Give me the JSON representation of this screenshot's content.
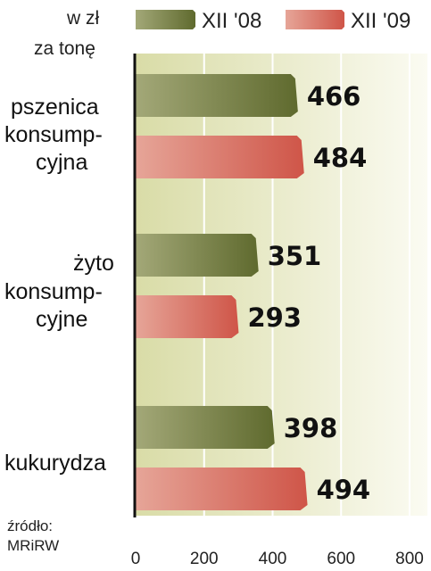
{
  "colors": {
    "series_2008": "#5f6a2e",
    "series_2008_light": "#a3a878",
    "series_2009": "#cf5548",
    "series_2009_light": "#e6a598",
    "background_left": "#d9dca7",
    "background_right": "#fbfbf2",
    "axis": "#111111",
    "grid": "#ffffff"
  },
  "chart_data": {
    "type": "bar",
    "orientation": "horizontal",
    "unit_label": [
      "w zł",
      "za tonę"
    ],
    "categories": [
      [
        "pszenica",
        "konsump-",
        "cyjna"
      ],
      [
        "żyto",
        "konsump-",
        "cyjne"
      ],
      [
        "kukurydza"
      ]
    ],
    "series": [
      {
        "name": "XII '08",
        "values": [
          466,
          351,
          398
        ]
      },
      {
        "name": "XII '09",
        "values": [
          484,
          293,
          494
        ]
      }
    ],
    "xlim": [
      0,
      800
    ],
    "xticks": [
      0,
      200,
      400,
      600,
      800
    ],
    "grid": true,
    "legend_position": "top",
    "source": [
      "źródło:",
      "MRiRW"
    ]
  }
}
